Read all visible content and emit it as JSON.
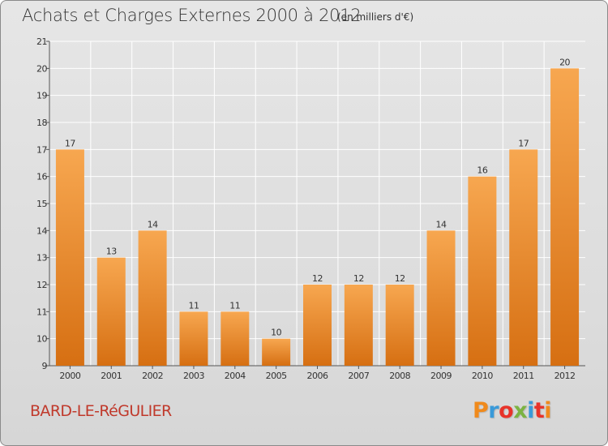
{
  "header": {
    "title": "Achats et Charges Externes 2000 à 2012",
    "subtitle": "(en milliers d'€)"
  },
  "footer": {
    "commune": "BARD-LE-RéGULIER",
    "brand": "Proxiti",
    "brand_colors": [
      "#f08a1c",
      "#3a9ad9",
      "#e8332a",
      "#7cb342",
      "#3a9ad9",
      "#e8332a",
      "#f08a1c"
    ]
  },
  "colors": {
    "bar_top": "#f7a750",
    "bar_bottom": "#d66f12",
    "grid": "#ffffff",
    "axis": "#555555",
    "commune_text": "#c0392b"
  },
  "chart_data": {
    "type": "bar",
    "title": "Achats et Charges Externes 2000 à 2012",
    "subtitle": "(en milliers d'€)",
    "xlabel": "",
    "ylabel": "",
    "categories": [
      "2000",
      "2001",
      "2002",
      "2003",
      "2004",
      "2005",
      "2006",
      "2007",
      "2008",
      "2009",
      "2010",
      "2011",
      "2012"
    ],
    "values": [
      17,
      13,
      14,
      11,
      11,
      10,
      12,
      12,
      12,
      14,
      16,
      17,
      20
    ],
    "ylim": [
      9,
      21
    ],
    "yticks": [
      9,
      10,
      11,
      12,
      13,
      14,
      15,
      16,
      17,
      18,
      19,
      20,
      21
    ],
    "grid": true,
    "legend": "none"
  }
}
